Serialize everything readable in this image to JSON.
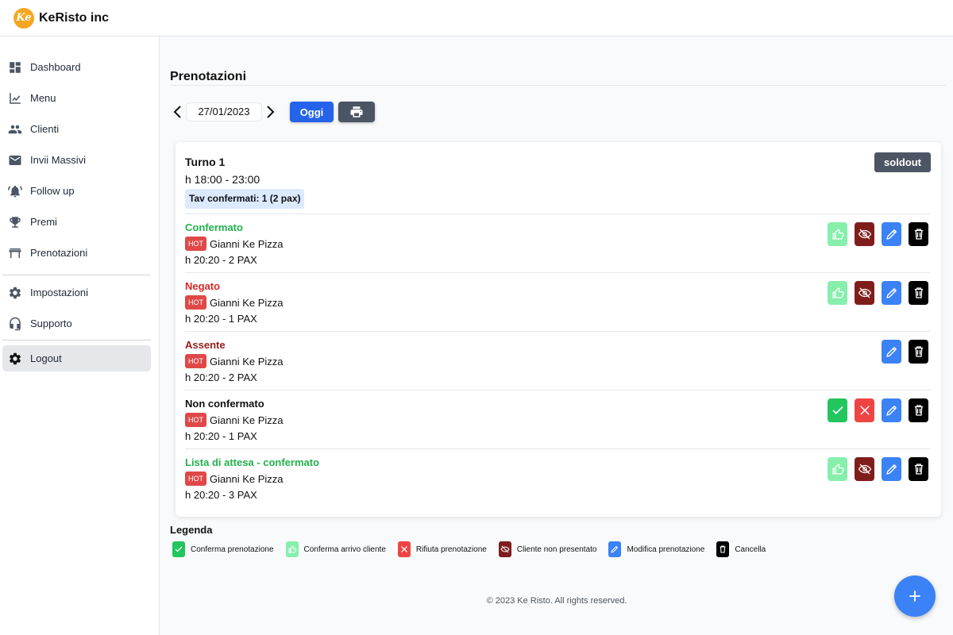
{
  "app": {
    "logo_mark": "Ke",
    "name": "KeRisto inc"
  },
  "sidebar": {
    "items": [
      {
        "label": "Dashboard",
        "icon": "dashboard-icon"
      },
      {
        "label": "Menu",
        "icon": "menu-chart-icon"
      },
      {
        "label": "Clienti",
        "icon": "people-icon"
      },
      {
        "label": "Invii Massivi",
        "icon": "mail-icon"
      },
      {
        "label": "Follow up",
        "icon": "bell-icon"
      },
      {
        "label": "Premi",
        "icon": "trophy-icon"
      },
      {
        "label": "Prenotazioni",
        "icon": "table-icon"
      },
      {
        "label": "Impostazioni",
        "icon": "settings-icon"
      },
      {
        "label": "Supporto",
        "icon": "headset-icon"
      },
      {
        "label": "Logout",
        "icon": "logout-gear-icon"
      }
    ]
  },
  "page": {
    "title": "Prenotazioni",
    "date": "27/01/2023",
    "today_label": "Oggi"
  },
  "turn": {
    "title": "Turno 1",
    "hours": "h 18:00 - 23:00",
    "confirmed_badge": "Tav confermati: 1 (2 pax)",
    "soldout_label": "soldout"
  },
  "reservations": [
    {
      "status": "Confermato",
      "status_color": "#22b14c",
      "hot": "HOT",
      "name": "Gianni Ke Pizza",
      "time": "h 20:20 - 2 PAX"
    },
    {
      "status": "Negato",
      "status_color": "#dc2626",
      "hot": "HOT",
      "name": "Gianni Ke Pizza",
      "time": "h 20:20 - 1 PAX"
    },
    {
      "status": "Assente",
      "status_color": "#991b1b",
      "hot": "HOT",
      "name": "Gianni Ke Pizza",
      "time": "h 20:20 - 2 PAX"
    },
    {
      "status": "Non confermato",
      "status_color": "#111111",
      "hot": "HOT",
      "name": "Gianni Ke Pizza",
      "time": "h 20:20 - 1 PAX"
    },
    {
      "status": "Lista di attesa - confermato",
      "status_color": "#22b14c",
      "hot": "HOT",
      "name": "Gianni Ke Pizza",
      "time": "h 20:20 - 3 PAX"
    }
  ],
  "legend": {
    "title": "Legenda",
    "items": [
      {
        "label": "Conferma prenotazione",
        "icon": "check-icon"
      },
      {
        "label": "Conferma arrivo cliente",
        "icon": "thumbs-up-icon"
      },
      {
        "label": "Rifiuta prenotazione",
        "icon": "x-icon"
      },
      {
        "label": "Cliente non presentato",
        "icon": "eye-off-icon"
      },
      {
        "label": "Modifica prenotazione",
        "icon": "pencil-icon"
      },
      {
        "label": "Cancella",
        "icon": "trash-icon"
      }
    ]
  },
  "footer": {
    "copyright": "© 2023 Ke Risto. All rights reserved."
  },
  "colors": {
    "primary": "#2563eb",
    "confirm_green": "#22c55e",
    "arrive_green": "#86efac",
    "reject_red": "#ef4444",
    "noshow_maroon": "#7f1d1d",
    "edit_blue": "#3b82f6",
    "delete_black": "#000000"
  }
}
